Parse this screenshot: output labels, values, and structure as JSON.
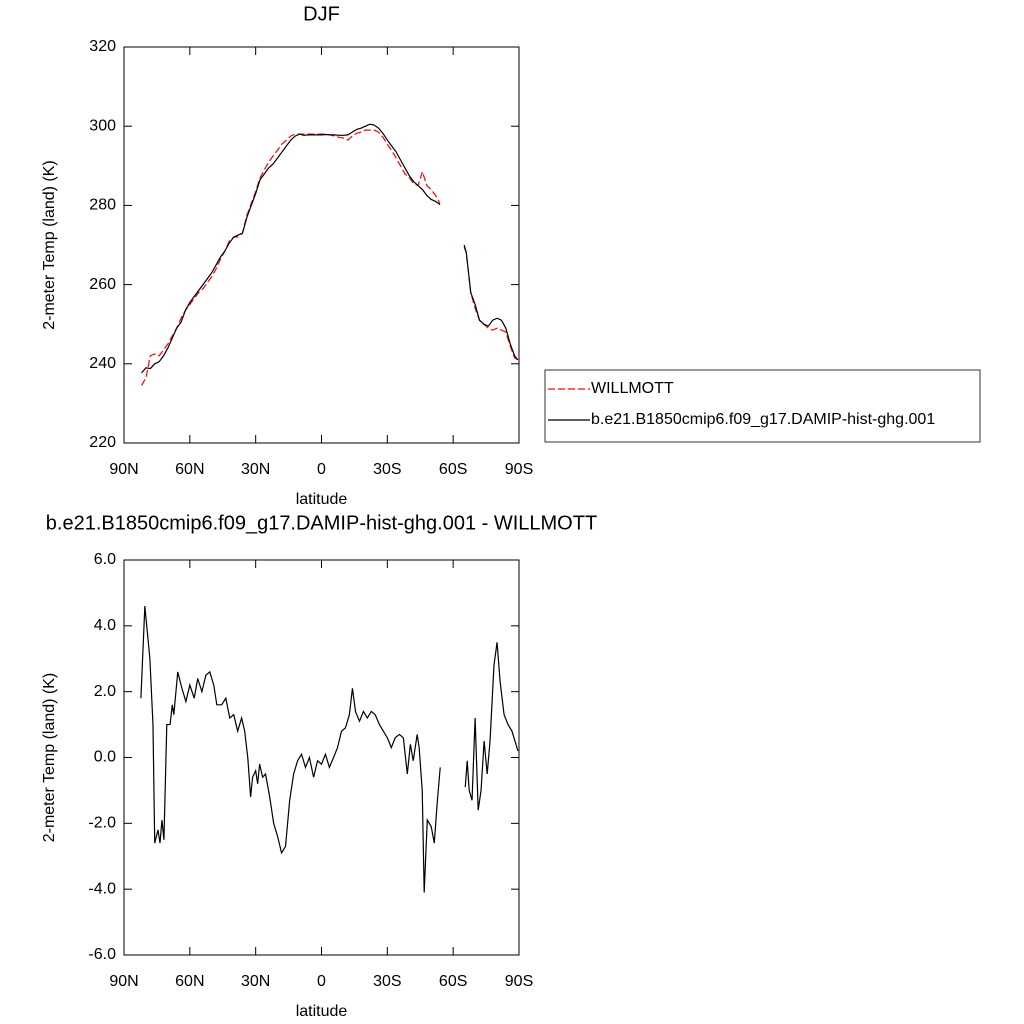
{
  "chart_data": [
    {
      "type": "line",
      "title": "DJF",
      "xlabel": "latitude",
      "ylabel": "2-meter Temp (land) (K)",
      "x": [
        82,
        80,
        78,
        76,
        74,
        72,
        70,
        68,
        66,
        64,
        62,
        60,
        58,
        56,
        54,
        52,
        50,
        48,
        46,
        44,
        42,
        40,
        38,
        36,
        34,
        32,
        30,
        28,
        26,
        24,
        22,
        20,
        18,
        16,
        14,
        12,
        10,
        8,
        6,
        4,
        2,
        0,
        -2,
        -4,
        -6,
        -8,
        -10,
        -12,
        -14,
        -16,
        -18,
        -20,
        -22,
        -24,
        -26,
        -28,
        -30,
        -32,
        -34,
        -36,
        -38,
        -40,
        -42,
        -44,
        -46,
        -48,
        -50,
        -52,
        -54,
        -60,
        -65,
        -66,
        -68,
        -70,
        -72,
        -74,
        -76,
        -78,
        -80,
        -82,
        -84,
        -86,
        -88,
        -89.5
      ],
      "series": [
        {
          "name": "WILLMOTT",
          "color": "#ff0000",
          "dashed": true,
          "values": [
            234.5,
            236.5,
            242,
            242.5,
            242,
            243.5,
            245,
            247,
            249,
            251.5,
            253.5,
            255,
            256.5,
            258,
            259,
            260.5,
            262,
            264,
            266.5,
            268.5,
            271,
            272,
            272,
            273,
            277.5,
            280.5,
            283.5,
            287,
            289,
            291,
            292.5,
            294,
            295.5,
            296.5,
            297.5,
            298,
            298,
            298,
            298,
            298,
            298,
            298,
            298,
            297.8,
            297.5,
            297.2,
            297,
            296.5,
            297.5,
            298.2,
            298.5,
            299,
            299,
            299,
            298.5,
            297.2,
            295.5,
            293.8,
            292,
            290,
            288,
            287,
            285.5,
            285,
            288.5,
            285,
            284,
            282.5,
            280.5,
            null,
            269.5,
            268,
            258,
            254,
            251,
            250,
            249,
            248.5,
            249,
            248.5,
            248,
            244.5,
            241.5,
            241
          ]
        },
        {
          "name": "b.e21.B1850cmip6.f09_g17.DAMIP-hist-ghg.001",
          "color": "#000000",
          "dashed": false,
          "values": [
            237.7,
            239,
            238.8,
            240,
            240.5,
            242,
            244,
            246.5,
            249,
            250.5,
            253.5,
            255.5,
            257,
            258.5,
            260,
            261.5,
            263,
            265,
            267,
            268.5,
            270.5,
            272,
            272.5,
            273,
            277,
            280,
            283,
            286.5,
            288,
            289.5,
            290.5,
            292,
            293.5,
            295,
            296.5,
            297.5,
            298,
            297.7,
            297.8,
            297.8,
            297.8,
            297.8,
            297.9,
            297.8,
            297.8,
            297.7,
            297.7,
            297.8,
            298.5,
            299.2,
            299.5,
            300,
            300.5,
            300.3,
            299.5,
            298.2,
            296.5,
            295,
            293.5,
            291.5,
            289.5,
            287.5,
            286,
            285,
            284,
            282.5,
            281.5,
            281,
            280.2,
            null,
            270,
            268,
            258,
            255,
            251,
            250,
            249.5,
            251,
            251.5,
            251,
            249,
            245,
            242,
            241
          ]
        }
      ],
      "xlim": [
        90,
        -90
      ],
      "xticks": [
        {
          "value": 90,
          "label": "90N"
        },
        {
          "value": 60,
          "label": "60N"
        },
        {
          "value": 30,
          "label": "30N"
        },
        0,
        {
          "value": -30,
          "label": "30S"
        },
        {
          "value": -60,
          "label": "60S"
        },
        {
          "value": -90,
          "label": "90S"
        }
      ],
      "ylim": [
        220,
        320
      ],
      "yticks": [
        220,
        240,
        260,
        280,
        300,
        320
      ],
      "legend": "right"
    },
    {
      "type": "line",
      "title": "b.e21.B1850cmip6.f09_g17.DAMIP-hist-ghg.001 - WILLMOTT",
      "xlabel": "latitude",
      "ylabel": "2-meter Temp (land) (K)",
      "x": [
        82.3,
        80.5,
        78.2,
        76.8,
        76,
        74.5,
        73.6,
        72.7,
        71.8,
        70.5,
        69,
        68,
        67.3,
        65.5,
        63.6,
        61.8,
        60,
        58,
        56.4,
        54.5,
        52.7,
        50.9,
        49.1,
        47.7,
        45.5,
        43.6,
        41.8,
        40,
        38.2,
        36.4,
        35,
        33.6,
        32.3,
        31.4,
        30,
        29.1,
        28.2,
        26.8,
        25.5,
        23.6,
        21.8,
        20,
        18.2,
        16.4,
        14.5,
        12.7,
        10.9,
        9.1,
        7.3,
        5.5,
        3.6,
        1.8,
        0,
        -1.8,
        -3.6,
        -5.5,
        -7.3,
        -9.1,
        -10.9,
        -12.7,
        -14.1,
        -15.5,
        -17.3,
        -19.1,
        -20.9,
        -22.7,
        -24.5,
        -26.4,
        -28.2,
        -30,
        -31.8,
        -33.6,
        -35.5,
        -37.3,
        -39.1,
        -40.5,
        -41.8,
        -43.6,
        -44.5,
        -45.9,
        -46.8,
        -48.2,
        -50,
        -51.4,
        -52.7,
        -54.1,
        -60,
        -65.5,
        -66.4,
        -67.3,
        -68.6,
        -70,
        -71.4,
        -72.7,
        -74.1,
        -75.5,
        -76.8,
        -78.6,
        -80,
        -81.4,
        -83.2,
        -85,
        -86.8,
        -88.6,
        -89.5
      ],
      "values": [
        1.8,
        4.6,
        3,
        1,
        -2.6,
        -2.2,
        -2.6,
        -1.9,
        -2.5,
        1,
        1,
        1.6,
        1.3,
        2.6,
        2.1,
        1.7,
        2.2,
        1.8,
        2.4,
        2,
        2.5,
        2.6,
        2.2,
        1.6,
        1.6,
        1.8,
        1.2,
        1.3,
        0.8,
        1.2,
        0.8,
        0,
        -1.2,
        -0.6,
        -0.4,
        -0.8,
        -0.2,
        -0.6,
        -0.5,
        -1.2,
        -2,
        -2.4,
        -2.9,
        -2.7,
        -1.3,
        -0.5,
        -0.1,
        0.1,
        -0.3,
        0,
        -0.6,
        -0.1,
        -0.2,
        0.1,
        -0.3,
        0,
        0.3,
        0.8,
        0.9,
        1.3,
        2.1,
        1.4,
        1.1,
        1.4,
        1.2,
        1.4,
        1.3,
        1,
        0.8,
        0.6,
        0.3,
        0.6,
        0.7,
        0.6,
        -0.5,
        0.4,
        -0.1,
        0.7,
        0.3,
        -1,
        -4.1,
        -1.9,
        -2.1,
        -2.6,
        -1.4,
        -0.3,
        null,
        -0.9,
        -0.1,
        -1,
        -1.3,
        1.2,
        -1.6,
        -1,
        0.5,
        -0.5,
        0.5,
        2.8,
        3.5,
        2.3,
        1.3,
        1,
        0.8,
        0.4,
        0.2
      ],
      "color": "#000000",
      "xlim": [
        90,
        -90
      ],
      "xticks": [
        {
          "value": 90,
          "label": "90N"
        },
        {
          "value": 60,
          "label": "60N"
        },
        {
          "value": 30,
          "label": "30N"
        },
        0,
        {
          "value": -30,
          "label": "30S"
        },
        {
          "value": -60,
          "label": "60S"
        },
        {
          "value": -90,
          "label": "90S"
        }
      ],
      "ylim": [
        -6,
        6
      ],
      "yticks": [
        {
          "value": -6,
          "label": "-6.0"
        },
        {
          "value": -4,
          "label": "-4.0"
        },
        {
          "value": -2,
          "label": "-2.0"
        },
        {
          "value": 0,
          "label": "0.0"
        },
        {
          "value": 2,
          "label": "2.0"
        },
        {
          "value": 4,
          "label": "4.0"
        },
        {
          "value": 6,
          "label": "6.0"
        }
      ]
    }
  ]
}
